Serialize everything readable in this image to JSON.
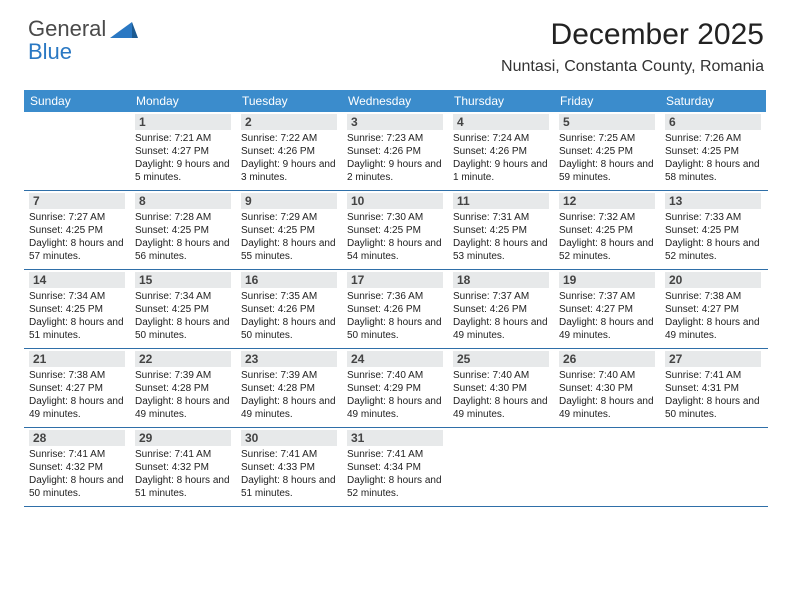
{
  "logo": {
    "text1": "General",
    "text2": "Blue"
  },
  "title": "December 2025",
  "location": "Nuntasi, Constanta County, Romania",
  "day_headers": [
    "Sunday",
    "Monday",
    "Tuesday",
    "Wednesday",
    "Thursday",
    "Friday",
    "Saturday"
  ],
  "colors": {
    "header_bg": "#3b8ccc",
    "divider": "#2f6fa8",
    "daynum_bg": "#e7e9ea",
    "logo_blue": "#2a78c3"
  },
  "weeks": [
    [
      {
        "num": "",
        "lines": ""
      },
      {
        "num": "1",
        "lines": "Sunrise: 7:21 AM\nSunset: 4:27 PM\nDaylight: 9 hours and 5 minutes."
      },
      {
        "num": "2",
        "lines": "Sunrise: 7:22 AM\nSunset: 4:26 PM\nDaylight: 9 hours and 3 minutes."
      },
      {
        "num": "3",
        "lines": "Sunrise: 7:23 AM\nSunset: 4:26 PM\nDaylight: 9 hours and 2 minutes."
      },
      {
        "num": "4",
        "lines": "Sunrise: 7:24 AM\nSunset: 4:26 PM\nDaylight: 9 hours and 1 minute."
      },
      {
        "num": "5",
        "lines": "Sunrise: 7:25 AM\nSunset: 4:25 PM\nDaylight: 8 hours and 59 minutes."
      },
      {
        "num": "6",
        "lines": "Sunrise: 7:26 AM\nSunset: 4:25 PM\nDaylight: 8 hours and 58 minutes."
      }
    ],
    [
      {
        "num": "7",
        "lines": "Sunrise: 7:27 AM\nSunset: 4:25 PM\nDaylight: 8 hours and 57 minutes."
      },
      {
        "num": "8",
        "lines": "Sunrise: 7:28 AM\nSunset: 4:25 PM\nDaylight: 8 hours and 56 minutes."
      },
      {
        "num": "9",
        "lines": "Sunrise: 7:29 AM\nSunset: 4:25 PM\nDaylight: 8 hours and 55 minutes."
      },
      {
        "num": "10",
        "lines": "Sunrise: 7:30 AM\nSunset: 4:25 PM\nDaylight: 8 hours and 54 minutes."
      },
      {
        "num": "11",
        "lines": "Sunrise: 7:31 AM\nSunset: 4:25 PM\nDaylight: 8 hours and 53 minutes."
      },
      {
        "num": "12",
        "lines": "Sunrise: 7:32 AM\nSunset: 4:25 PM\nDaylight: 8 hours and 52 minutes."
      },
      {
        "num": "13",
        "lines": "Sunrise: 7:33 AM\nSunset: 4:25 PM\nDaylight: 8 hours and 52 minutes."
      }
    ],
    [
      {
        "num": "14",
        "lines": "Sunrise: 7:34 AM\nSunset: 4:25 PM\nDaylight: 8 hours and 51 minutes."
      },
      {
        "num": "15",
        "lines": "Sunrise: 7:34 AM\nSunset: 4:25 PM\nDaylight: 8 hours and 50 minutes."
      },
      {
        "num": "16",
        "lines": "Sunrise: 7:35 AM\nSunset: 4:26 PM\nDaylight: 8 hours and 50 minutes."
      },
      {
        "num": "17",
        "lines": "Sunrise: 7:36 AM\nSunset: 4:26 PM\nDaylight: 8 hours and 50 minutes."
      },
      {
        "num": "18",
        "lines": "Sunrise: 7:37 AM\nSunset: 4:26 PM\nDaylight: 8 hours and 49 minutes."
      },
      {
        "num": "19",
        "lines": "Sunrise: 7:37 AM\nSunset: 4:27 PM\nDaylight: 8 hours and 49 minutes."
      },
      {
        "num": "20",
        "lines": "Sunrise: 7:38 AM\nSunset: 4:27 PM\nDaylight: 8 hours and 49 minutes."
      }
    ],
    [
      {
        "num": "21",
        "lines": "Sunrise: 7:38 AM\nSunset: 4:27 PM\nDaylight: 8 hours and 49 minutes."
      },
      {
        "num": "22",
        "lines": "Sunrise: 7:39 AM\nSunset: 4:28 PM\nDaylight: 8 hours and 49 minutes."
      },
      {
        "num": "23",
        "lines": "Sunrise: 7:39 AM\nSunset: 4:28 PM\nDaylight: 8 hours and 49 minutes."
      },
      {
        "num": "24",
        "lines": "Sunrise: 7:40 AM\nSunset: 4:29 PM\nDaylight: 8 hours and 49 minutes."
      },
      {
        "num": "25",
        "lines": "Sunrise: 7:40 AM\nSunset: 4:30 PM\nDaylight: 8 hours and 49 minutes."
      },
      {
        "num": "26",
        "lines": "Sunrise: 7:40 AM\nSunset: 4:30 PM\nDaylight: 8 hours and 49 minutes."
      },
      {
        "num": "27",
        "lines": "Sunrise: 7:41 AM\nSunset: 4:31 PM\nDaylight: 8 hours and 50 minutes."
      }
    ],
    [
      {
        "num": "28",
        "lines": "Sunrise: 7:41 AM\nSunset: 4:32 PM\nDaylight: 8 hours and 50 minutes."
      },
      {
        "num": "29",
        "lines": "Sunrise: 7:41 AM\nSunset: 4:32 PM\nDaylight: 8 hours and 51 minutes."
      },
      {
        "num": "30",
        "lines": "Sunrise: 7:41 AM\nSunset: 4:33 PM\nDaylight: 8 hours and 51 minutes."
      },
      {
        "num": "31",
        "lines": "Sunrise: 7:41 AM\nSunset: 4:34 PM\nDaylight: 8 hours and 52 minutes."
      },
      {
        "num": "",
        "lines": ""
      },
      {
        "num": "",
        "lines": ""
      },
      {
        "num": "",
        "lines": ""
      }
    ]
  ]
}
